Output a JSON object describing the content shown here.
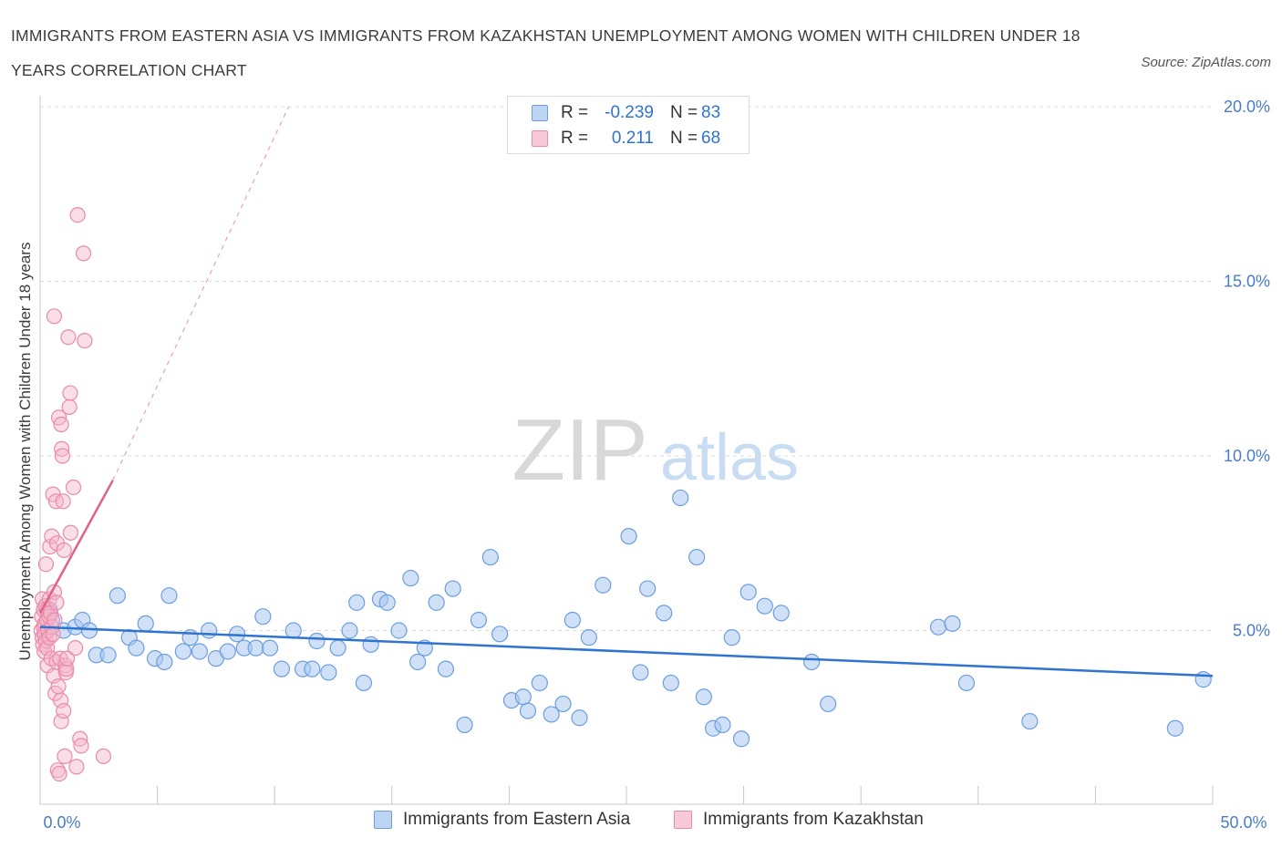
{
  "title": "IMMIGRANTS FROM EASTERN ASIA VS IMMIGRANTS FROM KAZAKHSTAN UNEMPLOYMENT AMONG WOMEN WITH CHILDREN UNDER 18 YEARS CORRELATION CHART",
  "source": "Source: ZipAtlas.com",
  "watermark": {
    "zip": "ZIP",
    "atlas": "atlas"
  },
  "legend_top": {
    "rows": [
      {
        "r_label": "R =",
        "r_value": "-0.239",
        "n_label": "N =",
        "n_value": "83"
      },
      {
        "r_label": "R =",
        "r_value": "0.211",
        "n_label": "N =",
        "n_value": "68"
      }
    ]
  },
  "bottom_legend": [
    "Immigrants from Eastern Asia",
    "Immigrants from Kazakhstan"
  ],
  "colors": {
    "blue_fill": "#a9c8f0",
    "blue_stroke": "#6c9ee0",
    "blue_line": "#2f74d0",
    "pink_fill": "#f5b6c9",
    "pink_stroke": "#e98aa8",
    "pink_line": "#e0608a",
    "tick_label": "#4a7cc9",
    "grid": "#dcdcdc"
  },
  "chart_data": {
    "type": "scatter",
    "title": "IMMIGRANTS FROM EASTERN ASIA VS IMMIGRANTS FROM KAZAKHSTAN UNEMPLOYMENT AMONG WOMEN WITH CHILDREN UNDER 18 YEARS CORRELATION CHART",
    "ylabel": "Unemployment Among Women with Children Under 18 years",
    "xlabel": "",
    "xlim": [
      0,
      50
    ],
    "ylim": [
      0,
      20.5
    ],
    "x_tick_labels": [
      "0.0%",
      "50.0%"
    ],
    "y_ticks": [
      5,
      10,
      15,
      20
    ],
    "y_tick_labels": [
      "5.0%",
      "10.0%",
      "15.0%",
      "20.0%"
    ],
    "grid": true,
    "legend_placement": "bottom",
    "series": [
      {
        "name": "Immigrants from Eastern Asia",
        "R": -0.239,
        "N": 83,
        "trend": {
          "x": [
            0,
            50
          ],
          "y": [
            5.1,
            3.7
          ],
          "style": "solid"
        },
        "points": [
          [
            0.4,
            5.6
          ],
          [
            0.5,
            5.3
          ],
          [
            1.0,
            5.0
          ],
          [
            1.5,
            5.1
          ],
          [
            1.8,
            5.3
          ],
          [
            2.1,
            5.0
          ],
          [
            2.4,
            4.3
          ],
          [
            2.9,
            4.3
          ],
          [
            3.3,
            6.0
          ],
          [
            3.8,
            4.8
          ],
          [
            4.1,
            4.5
          ],
          [
            4.5,
            5.2
          ],
          [
            4.9,
            4.2
          ],
          [
            5.3,
            4.1
          ],
          [
            5.5,
            6.0
          ],
          [
            6.1,
            4.4
          ],
          [
            6.4,
            4.8
          ],
          [
            6.8,
            4.4
          ],
          [
            7.2,
            5.0
          ],
          [
            7.5,
            4.2
          ],
          [
            8.0,
            4.4
          ],
          [
            8.4,
            4.9
          ],
          [
            8.7,
            4.5
          ],
          [
            9.2,
            4.5
          ],
          [
            9.5,
            5.4
          ],
          [
            9.8,
            4.5
          ],
          [
            10.3,
            3.9
          ],
          [
            10.8,
            5.0
          ],
          [
            11.2,
            3.9
          ],
          [
            11.6,
            3.9
          ],
          [
            11.8,
            4.7
          ],
          [
            12.3,
            3.8
          ],
          [
            12.7,
            4.5
          ],
          [
            13.2,
            5.0
          ],
          [
            13.5,
            5.8
          ],
          [
            13.8,
            3.5
          ],
          [
            14.1,
            4.6
          ],
          [
            14.5,
            5.9
          ],
          [
            14.8,
            5.8
          ],
          [
            15.3,
            5.0
          ],
          [
            15.8,
            6.5
          ],
          [
            16.1,
            4.1
          ],
          [
            16.4,
            4.5
          ],
          [
            16.9,
            5.8
          ],
          [
            17.3,
            3.9
          ],
          [
            17.6,
            6.2
          ],
          [
            18.1,
            2.3
          ],
          [
            18.7,
            5.3
          ],
          [
            19.2,
            7.1
          ],
          [
            19.6,
            4.9
          ],
          [
            20.1,
            3.0
          ],
          [
            20.6,
            3.1
          ],
          [
            20.8,
            2.7
          ],
          [
            21.3,
            3.5
          ],
          [
            21.8,
            2.6
          ],
          [
            22.3,
            2.9
          ],
          [
            22.7,
            5.3
          ],
          [
            23.0,
            2.5
          ],
          [
            23.4,
            4.8
          ],
          [
            24.0,
            6.3
          ],
          [
            25.1,
            7.7
          ],
          [
            25.6,
            3.8
          ],
          [
            25.9,
            6.2
          ],
          [
            26.6,
            5.5
          ],
          [
            26.9,
            3.5
          ],
          [
            27.3,
            8.8
          ],
          [
            28.0,
            7.1
          ],
          [
            28.3,
            3.1
          ],
          [
            28.7,
            2.2
          ],
          [
            29.1,
            2.3
          ],
          [
            29.5,
            4.8
          ],
          [
            29.9,
            1.9
          ],
          [
            30.2,
            6.1
          ],
          [
            30.9,
            5.7
          ],
          [
            31.6,
            5.5
          ],
          [
            32.9,
            4.1
          ],
          [
            33.6,
            2.9
          ],
          [
            38.3,
            5.1
          ],
          [
            38.9,
            5.2
          ],
          [
            39.5,
            3.5
          ],
          [
            42.2,
            2.4
          ],
          [
            48.4,
            2.2
          ],
          [
            49.6,
            3.6
          ]
        ]
      },
      {
        "name": "Immigrants from Kazakhstan",
        "R": 0.211,
        "N": 68,
        "trend": {
          "x": [
            0,
            3.1
          ],
          "y": [
            5.5,
            9.3
          ],
          "style": "solid",
          "dashed_extension_to": [
            10.6,
            20.0
          ]
        },
        "points": [
          [
            0.05,
            5.0
          ],
          [
            0.07,
            5.4
          ],
          [
            0.1,
            4.8
          ],
          [
            0.1,
            5.9
          ],
          [
            0.12,
            4.6
          ],
          [
            0.15,
            5.1
          ],
          [
            0.15,
            5.6
          ],
          [
            0.18,
            4.4
          ],
          [
            0.2,
            4.9
          ],
          [
            0.2,
            5.2
          ],
          [
            0.22,
            5.7
          ],
          [
            0.25,
            4.7
          ],
          [
            0.25,
            6.9
          ],
          [
            0.28,
            5.3
          ],
          [
            0.3,
            4.5
          ],
          [
            0.3,
            5.6
          ],
          [
            0.32,
            4.0
          ],
          [
            0.35,
            5.0
          ],
          [
            0.38,
            5.4
          ],
          [
            0.4,
            4.8
          ],
          [
            0.4,
            5.9
          ],
          [
            0.42,
            7.4
          ],
          [
            0.45,
            5.5
          ],
          [
            0.48,
            4.2
          ],
          [
            0.5,
            5.1
          ],
          [
            0.5,
            7.7
          ],
          [
            0.55,
            4.9
          ],
          [
            0.55,
            8.9
          ],
          [
            0.58,
            3.7
          ],
          [
            0.6,
            6.1
          ],
          [
            0.6,
            14.0
          ],
          [
            0.62,
            5.3
          ],
          [
            0.65,
            3.2
          ],
          [
            0.68,
            8.7
          ],
          [
            0.7,
            4.1
          ],
          [
            0.7,
            5.8
          ],
          [
            0.72,
            7.5
          ],
          [
            0.75,
            1.0
          ],
          [
            0.78,
            3.4
          ],
          [
            0.8,
            11.1
          ],
          [
            0.82,
            0.9
          ],
          [
            0.85,
            4.2
          ],
          [
            0.88,
            3.0
          ],
          [
            0.9,
            10.9
          ],
          [
            0.9,
            2.4
          ],
          [
            0.92,
            10.2
          ],
          [
            0.95,
            10.0
          ],
          [
            0.98,
            8.7
          ],
          [
            1.0,
            2.7
          ],
          [
            1.02,
            7.3
          ],
          [
            1.05,
            1.4
          ],
          [
            1.08,
            4.0
          ],
          [
            1.1,
            3.8
          ],
          [
            1.12,
            3.9
          ],
          [
            1.15,
            4.2
          ],
          [
            1.2,
            13.4
          ],
          [
            1.25,
            11.4
          ],
          [
            1.28,
            11.8
          ],
          [
            1.3,
            7.8
          ],
          [
            1.42,
            9.1
          ],
          [
            1.5,
            4.5
          ],
          [
            1.55,
            1.1
          ],
          [
            1.6,
            16.9
          ],
          [
            1.7,
            1.9
          ],
          [
            1.75,
            1.7
          ],
          [
            1.85,
            15.8
          ],
          [
            1.9,
            13.3
          ],
          [
            2.7,
            1.4
          ]
        ]
      }
    ]
  }
}
